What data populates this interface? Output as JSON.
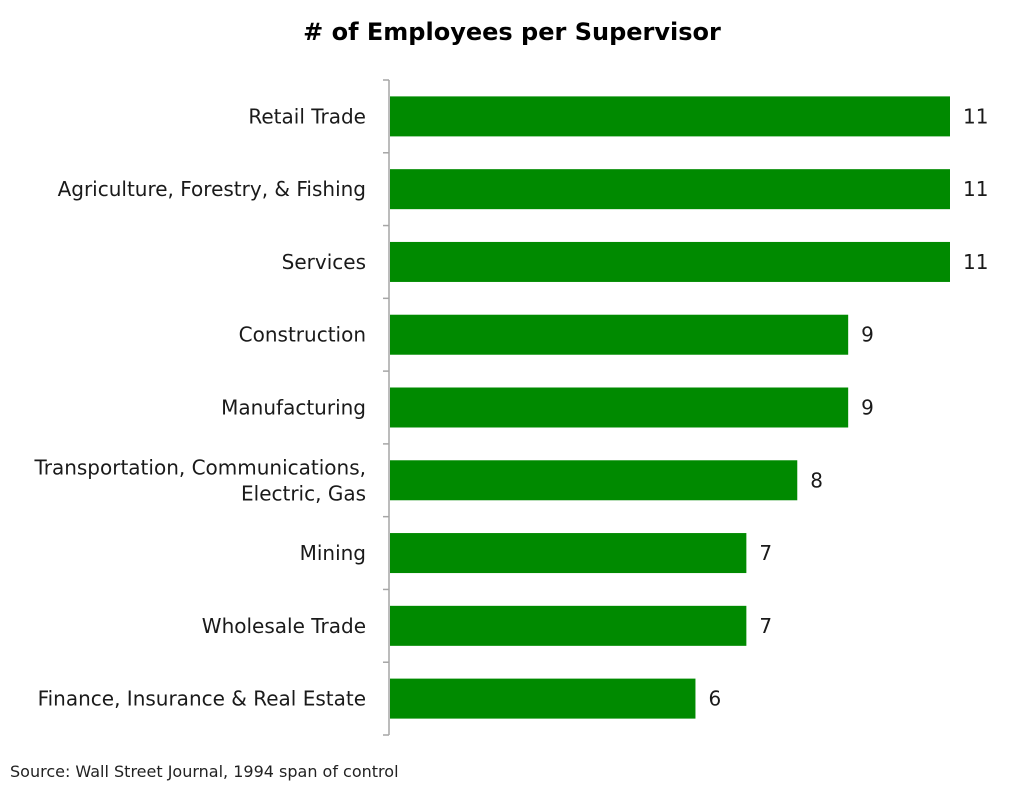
{
  "chart_data": {
    "type": "bar",
    "orientation": "horizontal",
    "title": "# of Employees per Supervisor",
    "categories": [
      "Retail Trade",
      "Agriculture, Forestry, & Fishing",
      "Services",
      "Construction",
      "Manufacturing",
      "Transportation, Communications, Electric, Gas",
      "Mining",
      "Wholesale Trade",
      "Finance, Insurance & Real Estate"
    ],
    "category_lines": [
      [
        "Retail Trade"
      ],
      [
        "Agriculture, Forestry, & Fishing"
      ],
      [
        "Services"
      ],
      [
        "Construction"
      ],
      [
        "Manufacturing"
      ],
      [
        "Transportation, Communications,",
        "Electric, Gas"
      ],
      [
        "Mining"
      ],
      [
        "Wholesale Trade"
      ],
      [
        "Finance, Insurance & Real Estate"
      ]
    ],
    "values": [
      11,
      11,
      11,
      9,
      9,
      8,
      7,
      7,
      6
    ],
    "data_labels": [
      "11",
      "11",
      "11",
      "9",
      "9",
      "8",
      "7",
      "7",
      "6"
    ],
    "bar_color": "#008a00",
    "axis_color": "#a6a6a6",
    "xlim": [
      0,
      11
    ],
    "grid": false,
    "legend": "none"
  },
  "source": "Source: Wall Street Journal, 1994 span of control"
}
